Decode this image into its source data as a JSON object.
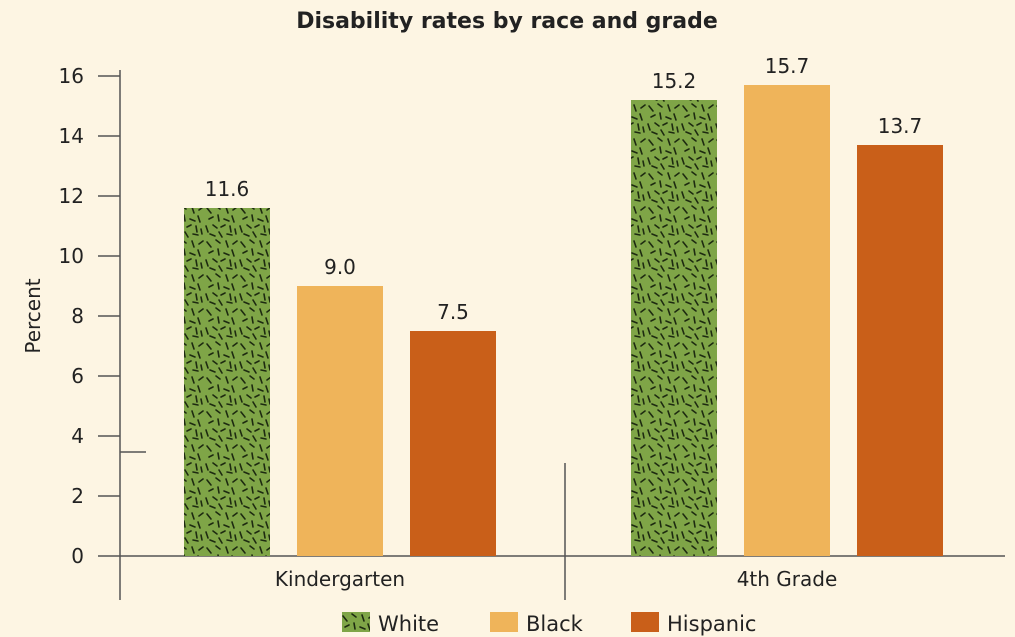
{
  "chart_data": {
    "type": "bar",
    "title": "Disability rates by race and grade",
    "ylabel": "Percent",
    "xlabel": "",
    "ylim": [
      0,
      16
    ],
    "yticks": [
      0,
      2,
      4,
      6,
      8,
      10,
      12,
      14,
      16
    ],
    "categories": [
      "Kindergarten",
      "4th Grade"
    ],
    "series": [
      {
        "name": "White",
        "values": [
          11.6,
          15.2
        ],
        "labels": [
          "11.6",
          "15.2"
        ],
        "color": "#7fa547",
        "pattern": "dashes"
      },
      {
        "name": "Black",
        "values": [
          9.0,
          15.7
        ],
        "labels": [
          "9.0",
          "15.7"
        ],
        "color": "#efb45a"
      },
      {
        "name": "Hispanic",
        "values": [
          7.5,
          13.7
        ],
        "labels": [
          "7.5",
          "13.7"
        ],
        "color": "#c95f19"
      }
    ],
    "legend": "bottom",
    "grid": false
  }
}
